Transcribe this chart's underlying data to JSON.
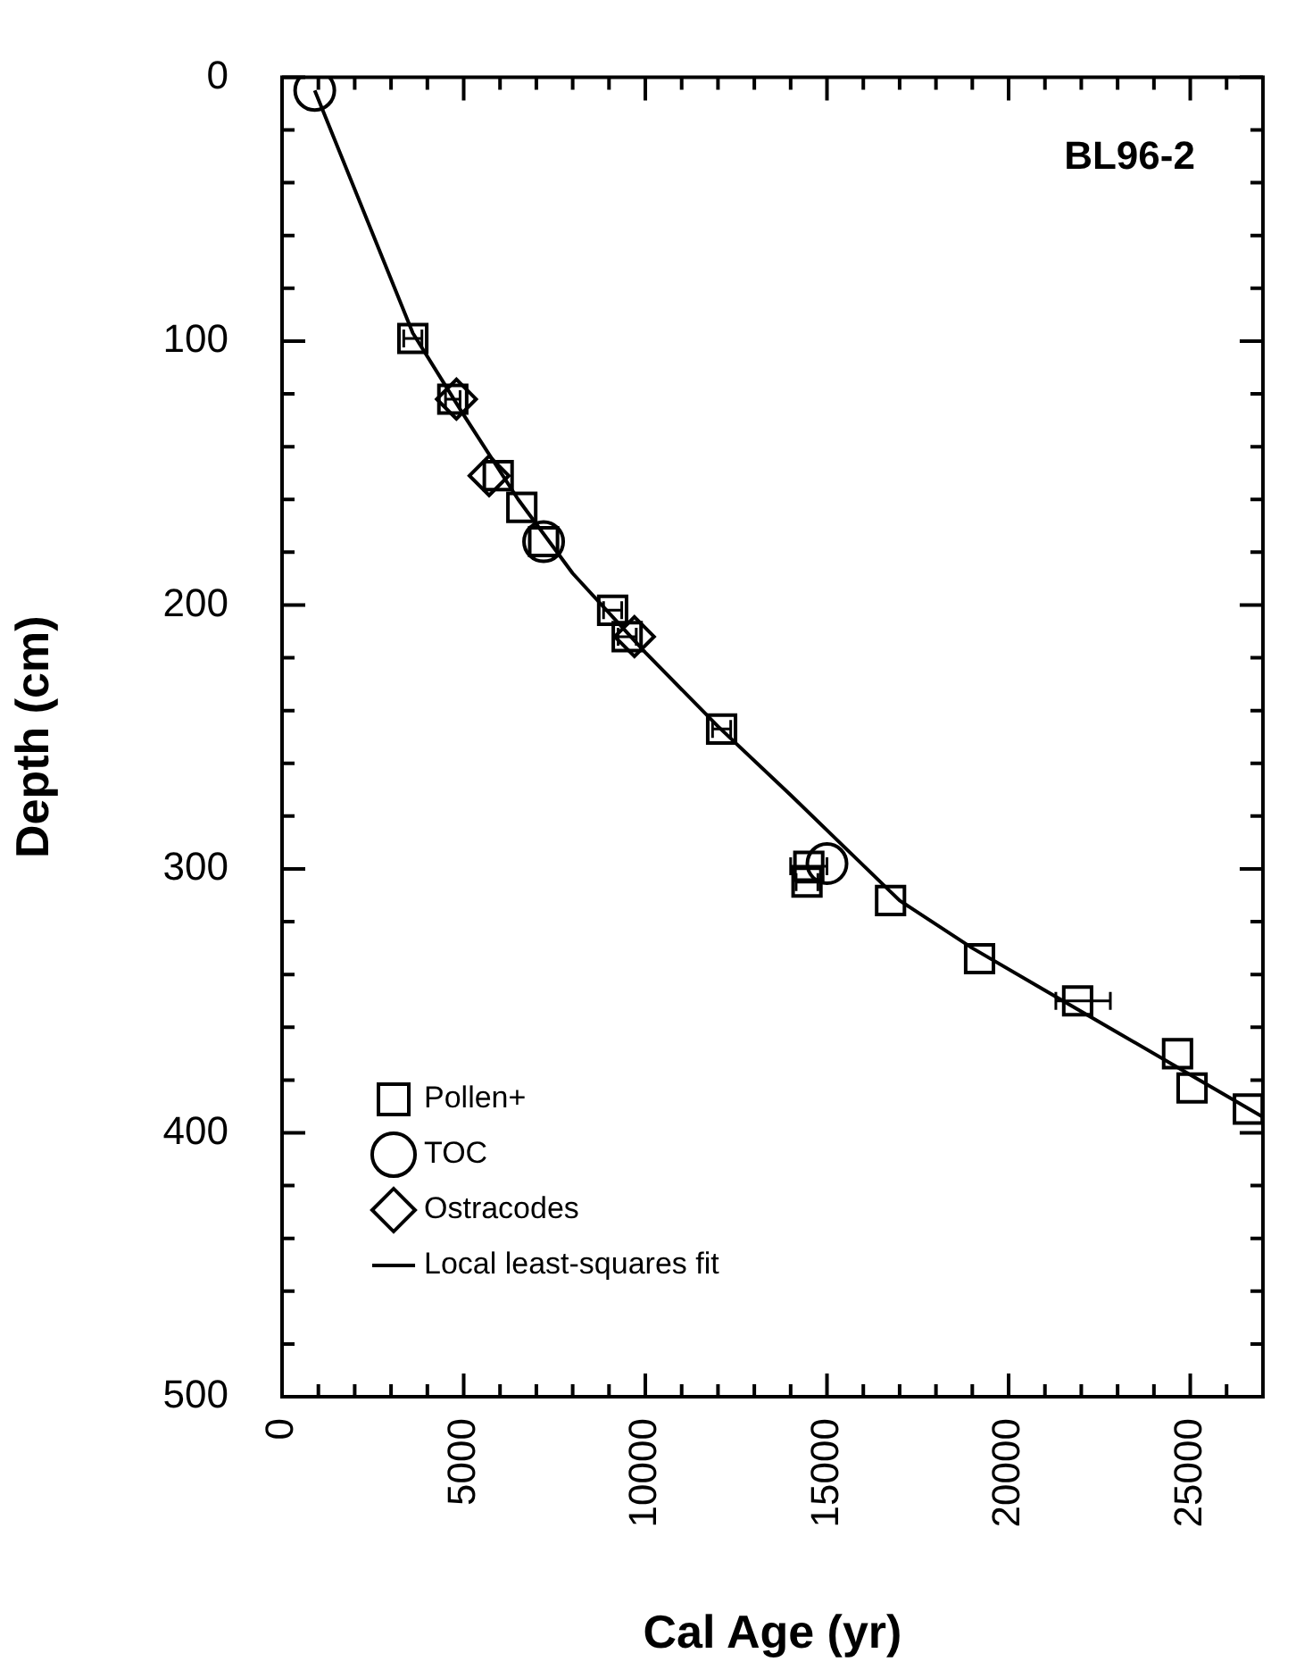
{
  "chart_data": {
    "type": "scatter",
    "title": "BL96-2",
    "xlabel": "Cal Age (yr)",
    "ylabel": "Depth (cm)",
    "xlim": [
      0,
      27000
    ],
    "ylim": [
      500,
      0
    ],
    "xticks": [
      0,
      {
        "value": 1000,
        "label": null
      },
      {
        "value": 2000,
        "label": null
      },
      {
        "value": 3000,
        "label": null
      },
      {
        "value": 4000,
        "label": null
      },
      5000,
      {
        "value": 6000,
        "label": null
      },
      {
        "value": 7000,
        "label": null
      },
      {
        "value": 8000,
        "label": null
      },
      {
        "value": 9000,
        "label": null
      },
      10000,
      {
        "value": 11000,
        "label": null
      },
      {
        "value": 12000,
        "label": null
      },
      {
        "value": 13000,
        "label": null
      },
      {
        "value": 14000,
        "label": null
      },
      15000,
      {
        "value": 16000,
        "label": null
      },
      {
        "value": 17000,
        "label": null
      },
      {
        "value": 18000,
        "label": null
      },
      {
        "value": 19000,
        "label": null
      },
      20000,
      {
        "value": 21000,
        "label": null
      },
      {
        "value": 22000,
        "label": null
      },
      {
        "value": 23000,
        "label": null
      },
      {
        "value": 24000,
        "label": null
      },
      25000,
      {
        "value": 26000,
        "label": null
      }
    ],
    "yticks": [
      0,
      {
        "value": 20,
        "label": null
      },
      {
        "value": 40,
        "label": null
      },
      {
        "value": 60,
        "label": null
      },
      {
        "value": 80,
        "label": null
      },
      100,
      {
        "value": 120,
        "label": null
      },
      {
        "value": 140,
        "label": null
      },
      {
        "value": 160,
        "label": null
      },
      {
        "value": 180,
        "label": null
      },
      200,
      {
        "value": 220,
        "label": null
      },
      {
        "value": 240,
        "label": null
      },
      {
        "value": 260,
        "label": null
      },
      {
        "value": 280,
        "label": null
      },
      300,
      {
        "value": 320,
        "label": null
      },
      {
        "value": 340,
        "label": null
      },
      {
        "value": 360,
        "label": null
      },
      {
        "value": 380,
        "label": null
      },
      400,
      {
        "value": 420,
        "label": null
      },
      {
        "value": 440,
        "label": null
      },
      {
        "value": 460,
        "label": null
      },
      {
        "value": 480,
        "label": null
      },
      500
    ],
    "grid": false,
    "legend": "bottom left",
    "series": [
      {
        "name": "Pollen+",
        "type": "scatter",
        "marker": "square",
        "color": "#000000",
        "x": [
          3600,
          4700,
          5950,
          6600,
          7200,
          9100,
          9500,
          12100,
          14500,
          14450,
          16750,
          19200,
          21900,
          24650,
          25050,
          26600
        ],
        "values": [
          99,
          122,
          151,
          163,
          176,
          202,
          212,
          247,
          299,
          305,
          312,
          334,
          350,
          370,
          383,
          391
        ],
        "xerrors": [
          250,
          200,
          null,
          null,
          null,
          250,
          250,
          250,
          500,
          300,
          null,
          null,
          [
            21300,
            22800
          ],
          null,
          null,
          null
        ]
      },
      {
        "name": "TOC",
        "type": "scatter",
        "marker": "circle",
        "color": "#000000",
        "x": [
          900,
          7200,
          15000
        ],
        "values": [
          5,
          176,
          298
        ]
      },
      {
        "name": "Ostracodes",
        "type": "scatter",
        "marker": "diamond",
        "color": "#000000",
        "x": [
          4800,
          5700,
          9700
        ],
        "values": [
          122,
          151,
          212
        ]
      },
      {
        "name": "Local least-squares fit",
        "type": "line",
        "marker": "none",
        "line_style": "solid",
        "color": "#000000",
        "x": [
          900,
          3600,
          5000,
          6500,
          8000,
          10000,
          12000,
          14000,
          15500,
          17000,
          19000,
          21000,
          23000,
          25000,
          27000
        ],
        "values": [
          5,
          97,
          128,
          160,
          188,
          218,
          246,
          272,
          292,
          312,
          330,
          346,
          362,
          378,
          394
        ]
      }
    ]
  }
}
